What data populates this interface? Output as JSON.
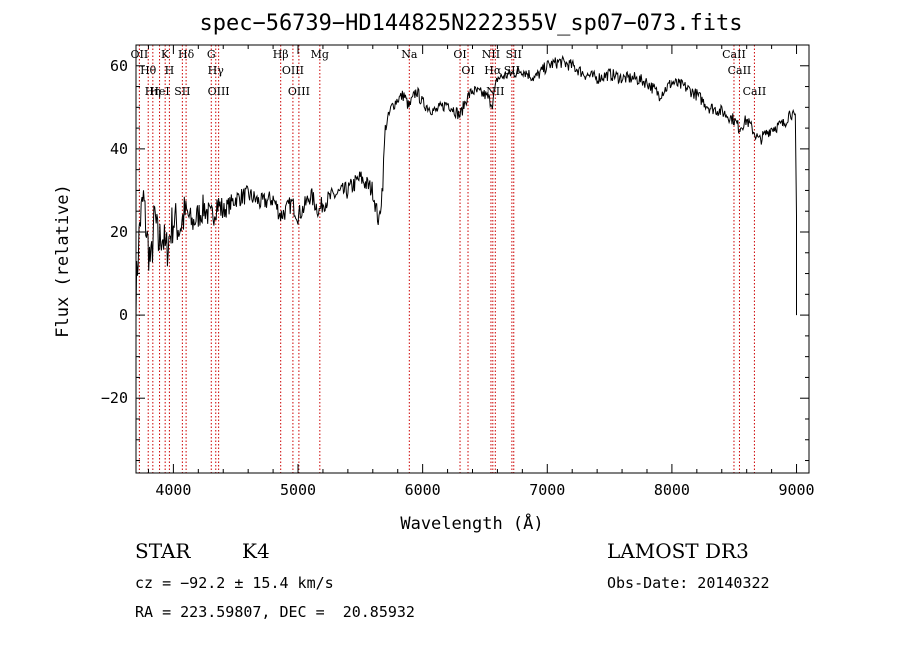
{
  "chart_data": {
    "type": "line",
    "title": "spec−56739−HD144825N222355V_sp07−073.fits",
    "xlabel": "Wavelength (Å)",
    "ylabel": "Flux (relative)",
    "xlim": [
      3700,
      9100
    ],
    "ylim": [
      -38,
      65
    ],
    "x_ticks": [
      4000,
      5000,
      6000,
      7000,
      8000,
      9000
    ],
    "x_tick_labels": [
      "4000",
      "5000",
      "6000",
      "7000",
      "8000",
      "9000"
    ],
    "y_ticks": [
      -20,
      0,
      20,
      40,
      60
    ],
    "y_tick_labels": [
      "−20",
      "0",
      "20",
      "40",
      "60"
    ],
    "series": [
      {
        "name": "flux",
        "x": [
          3700,
          3730,
          3760,
          3790,
          3820,
          3850,
          3880,
          3910,
          3940,
          3970,
          4000,
          4050,
          4100,
          4150,
          4200,
          4250,
          4300,
          4350,
          4400,
          4500,
          4600,
          4700,
          4800,
          4860,
          4900,
          4950,
          5000,
          5050,
          5100,
          5170,
          5200,
          5300,
          5400,
          5500,
          5600,
          5650,
          5680,
          5700,
          5750,
          5800,
          5850,
          5890,
          5950,
          6000,
          6100,
          6200,
          6300,
          6350,
          6400,
          6500,
          6560,
          6600,
          6700,
          6800,
          6900,
          7000,
          7100,
          7200,
          7300,
          7400,
          7500,
          7600,
          7700,
          7800,
          7900,
          8000,
          8100,
          8200,
          8300,
          8400,
          8500,
          8540,
          8600,
          8660,
          8700,
          8800,
          8900,
          8950,
          8990,
          9000
        ],
        "y": [
          5,
          22,
          28,
          18,
          12,
          24,
          17,
          20,
          15,
          19,
          23,
          21,
          25,
          22,
          24,
          26,
          23,
          27,
          25,
          28,
          29,
          27,
          28,
          24,
          25,
          27,
          24,
          26,
          29,
          25,
          27,
          29,
          30,
          33,
          30,
          22,
          32,
          45,
          50,
          52,
          53,
          50,
          54,
          51,
          49,
          51,
          48,
          52,
          54,
          53,
          51,
          57,
          58,
          59,
          57,
          60,
          61,
          60,
          58,
          57,
          58,
          57,
          57,
          56,
          53,
          56,
          55,
          53,
          50,
          49,
          47,
          45,
          47,
          44,
          42,
          45,
          46,
          49,
          47,
          24
        ]
      }
    ],
    "line_color": "#000000",
    "marker_color": "#cc0000",
    "line_markers": [
      {
        "label": "OII",
        "wavelength": 3727
      },
      {
        "label": "Hθ",
        "wavelength": 3798
      },
      {
        "label": "Hη",
        "wavelength": 3835
      },
      {
        "label": "HeI",
        "wavelength": 3889
      },
      {
        "label": "K",
        "wavelength": 3934
      },
      {
        "label": "H",
        "wavelength": 3968
      },
      {
        "label": "Hδ",
        "wavelength": 4102
      },
      {
        "label": "SII",
        "wavelength": 4072
      },
      {
        "label": "G",
        "wavelength": 4304
      },
      {
        "label": "Hγ",
        "wavelength": 4340
      },
      {
        "label": "OIII",
        "wavelength": 4363
      },
      {
        "label": "Hβ",
        "wavelength": 4861
      },
      {
        "label": "OIII",
        "wavelength": 4959
      },
      {
        "label": "OIII",
        "wavelength": 5007
      },
      {
        "label": "Mg",
        "wavelength": 5175
      },
      {
        "label": "Na",
        "wavelength": 5893
      },
      {
        "label": "OI",
        "wavelength": 6300
      },
      {
        "label": "OI",
        "wavelength": 6364
      },
      {
        "label": "NII",
        "wavelength": 6548
      },
      {
        "label": "Hα",
        "wavelength": 6563
      },
      {
        "label": "NII",
        "wavelength": 6583
      },
      {
        "label": "SII",
        "wavelength": 6716
      },
      {
        "label": "SII",
        "wavelength": 6731
      },
      {
        "label": "CaII",
        "wavelength": 8498
      },
      {
        "label": "CaII",
        "wavelength": 8542
      },
      {
        "label": "CaII",
        "wavelength": 8662
      }
    ]
  },
  "info": {
    "object_class": "STAR",
    "subclass": "K4",
    "survey": "LAMOST DR3",
    "redshift_line": "cz = −92.2 ± 15.4 km/s",
    "obs_date": "Obs-Date: 20140322",
    "coords": "RA = 223.59807, DEC =  20.85932"
  }
}
